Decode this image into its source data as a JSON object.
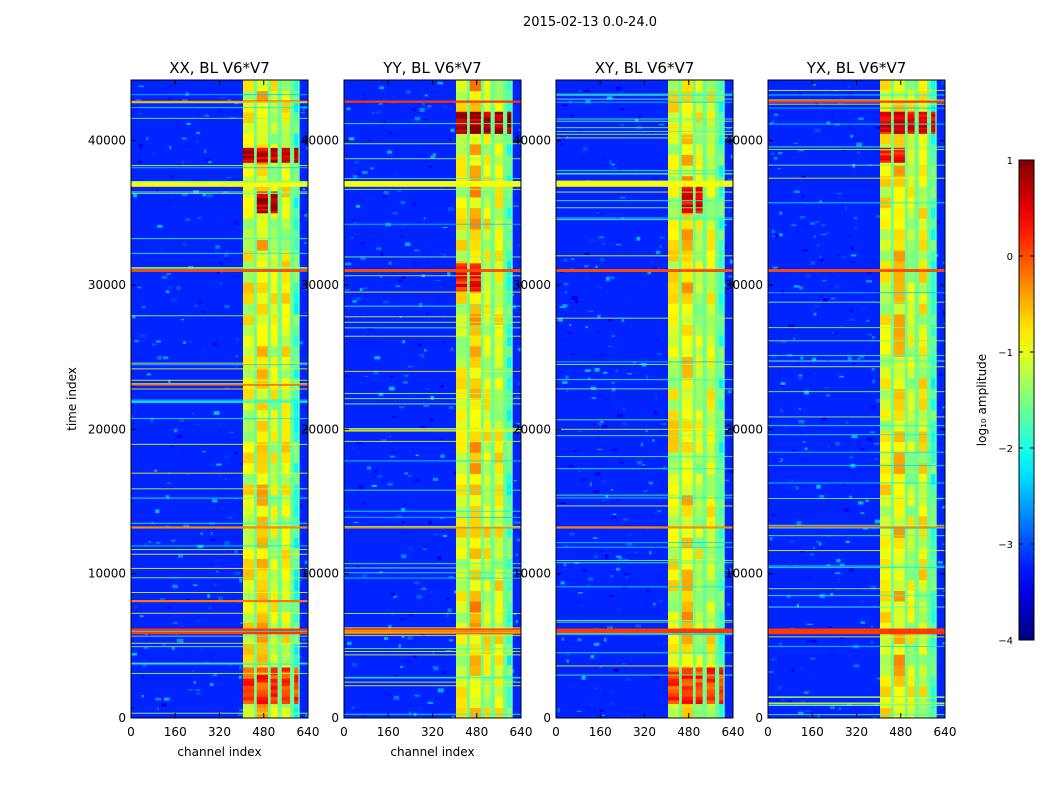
{
  "figure_title": "2015-02-13 0.0-24.0",
  "chart_data": [
    {
      "type": "heatmap",
      "title": "XX, BL V6*V7",
      "xlabel": "channel index",
      "ylabel": "time index",
      "xlim": [
        0,
        640
      ],
      "ylim": [
        0,
        44200
      ],
      "xticks": [
        0,
        160,
        320,
        480,
        640
      ],
      "yticks": [
        0,
        10000,
        20000,
        30000,
        40000
      ],
      "ytick_labels": [
        "0",
        "10000",
        "20000",
        "30000",
        "40000"
      ],
      "background_log10": -3.2,
      "rfi_channel_band": [
        405,
        610
      ],
      "bright_channel_columns": [
        {
          "start": 405,
          "end": 445,
          "log10": -1.0
        },
        {
          "start": 455,
          "end": 495,
          "log10": -0.7
        },
        {
          "start": 505,
          "end": 530,
          "log10": -1.1
        },
        {
          "start": 545,
          "end": 575,
          "log10": -1.0
        },
        {
          "start": 590,
          "end": 605,
          "log10": -1.8
        }
      ],
      "hot_regions": [
        {
          "ch": [
            455,
            540
          ],
          "t": [
            35000,
            36500
          ],
          "log10": 0.7
        },
        {
          "ch": [
            400,
            610
          ],
          "t": [
            1000,
            3500
          ],
          "log10": 0.1
        },
        {
          "ch": [
            410,
            600
          ],
          "t": [
            38500,
            39500
          ],
          "log10": 0.6
        }
      ],
      "horizontal_lines": [
        {
          "t": 6000,
          "log10": 0.1,
          "w": 400
        },
        {
          "t": 8100,
          "log10": -0.2,
          "w": 150
        },
        {
          "t": 13200,
          "log10": -0.3,
          "w": 150
        },
        {
          "t": 23100,
          "log10": -0.1,
          "w": 150
        },
        {
          "t": 31000,
          "log10": 0.0,
          "w": 200
        },
        {
          "t": 37000,
          "log10": -0.9,
          "w": 400
        },
        {
          "t": 42700,
          "log10": 0.1,
          "w": 150
        }
      ]
    },
    {
      "type": "heatmap",
      "title": "YY, BL V6*V7",
      "xlabel": "channel index",
      "ylabel": "",
      "xlim": [
        0,
        640
      ],
      "ylim": [
        0,
        44200
      ],
      "xticks": [
        0,
        160,
        320,
        480,
        640
      ],
      "yticks": [
        0,
        10000,
        20000,
        30000,
        40000
      ],
      "ytick_labels": [
        "0",
        "10000",
        "20000",
        "30000",
        "40000"
      ],
      "background_log10": -3.2,
      "rfi_channel_band": [
        405,
        610
      ],
      "bright_channel_columns": [
        {
          "start": 405,
          "end": 445,
          "log10": -1.0
        },
        {
          "start": 455,
          "end": 495,
          "log10": -0.6
        },
        {
          "start": 505,
          "end": 530,
          "log10": -1.0
        },
        {
          "start": 545,
          "end": 575,
          "log10": -1.0
        },
        {
          "start": 590,
          "end": 605,
          "log10": -1.8
        }
      ],
      "hot_regions": [
        {
          "ch": [
            400,
            600
          ],
          "t": [
            40500,
            42000
          ],
          "log10": 0.8
        },
        {
          "ch": [
            410,
            500
          ],
          "t": [
            29500,
            31500
          ],
          "log10": 0.3
        }
      ],
      "horizontal_lines": [
        {
          "t": 6000,
          "log10": 0.1,
          "w": 400
        },
        {
          "t": 13200,
          "log10": -0.3,
          "w": 150
        },
        {
          "t": 31000,
          "log10": 0.0,
          "w": 200
        },
        {
          "t": 37000,
          "log10": -0.9,
          "w": 400
        },
        {
          "t": 42700,
          "log10": 0.1,
          "w": 150
        }
      ]
    },
    {
      "type": "heatmap",
      "title": "XY, BL V6*V7",
      "xlabel": "",
      "ylabel": "",
      "xlim": [
        0,
        640
      ],
      "ylim": [
        0,
        44200
      ],
      "xticks": [
        0,
        160,
        320,
        480,
        640
      ],
      "yticks": [
        0,
        10000,
        20000,
        30000,
        40000
      ],
      "ytick_labels": [
        "0",
        "10000",
        "20000",
        "30000",
        "40000"
      ],
      "background_log10": -3.2,
      "rfi_channel_band": [
        405,
        610
      ],
      "bright_channel_columns": [
        {
          "start": 405,
          "end": 445,
          "log10": -1.0
        },
        {
          "start": 455,
          "end": 495,
          "log10": -0.7
        },
        {
          "start": 505,
          "end": 530,
          "log10": -1.1
        },
        {
          "start": 545,
          "end": 575,
          "log10": -1.0
        },
        {
          "start": 590,
          "end": 605,
          "log10": -1.8
        }
      ],
      "hot_regions": [
        {
          "ch": [
            400,
            610
          ],
          "t": [
            1000,
            3500
          ],
          "log10": 0.1
        },
        {
          "ch": [
            455,
            540
          ],
          "t": [
            35000,
            37000
          ],
          "log10": 0.5
        }
      ],
      "horizontal_lines": [
        {
          "t": 6000,
          "log10": 0.1,
          "w": 400
        },
        {
          "t": 13200,
          "log10": -0.3,
          "w": 150
        },
        {
          "t": 31000,
          "log10": 0.0,
          "w": 200
        },
        {
          "t": 37000,
          "log10": -0.9,
          "w": 400
        }
      ]
    },
    {
      "type": "heatmap",
      "title": "YX, BL V6*V7",
      "xlabel": "",
      "ylabel": "",
      "xlim": [
        0,
        640
      ],
      "ylim": [
        0,
        44200
      ],
      "xticks": [
        0,
        160,
        320,
        480,
        640
      ],
      "yticks": [
        0,
        10000,
        20000,
        30000,
        40000
      ],
      "ytick_labels": [
        "0",
        "10000",
        "20000",
        "30000",
        "40000"
      ],
      "background_log10": -3.2,
      "rfi_channel_band": [
        405,
        610
      ],
      "bright_channel_columns": [
        {
          "start": 405,
          "end": 445,
          "log10": -1.0
        },
        {
          "start": 455,
          "end": 495,
          "log10": -0.7
        },
        {
          "start": 505,
          "end": 530,
          "log10": -1.1
        },
        {
          "start": 545,
          "end": 575,
          "log10": -1.0
        },
        {
          "start": 590,
          "end": 605,
          "log10": -1.8
        }
      ],
      "hot_regions": [
        {
          "ch": [
            400,
            600
          ],
          "t": [
            40500,
            42000
          ],
          "log10": 0.5
        },
        {
          "ch": [
            410,
            500
          ],
          "t": [
            38500,
            39500
          ],
          "log10": 0.3
        }
      ],
      "horizontal_lines": [
        {
          "t": 6000,
          "log10": 0.1,
          "w": 400
        },
        {
          "t": 13200,
          "log10": -0.3,
          "w": 150
        },
        {
          "t": 31000,
          "log10": 0.0,
          "w": 200
        },
        {
          "t": 42700,
          "log10": 0.1,
          "w": 150
        }
      ]
    }
  ],
  "colorbar": {
    "label": "log₁₀ amplitude",
    "range": [
      -4,
      1
    ],
    "ticks": [
      1,
      0,
      -1,
      -2,
      -3,
      -4
    ],
    "tick_labels": [
      "1",
      "0",
      "−1",
      "−2",
      "−3",
      "−4"
    ],
    "colormap": "jet"
  }
}
